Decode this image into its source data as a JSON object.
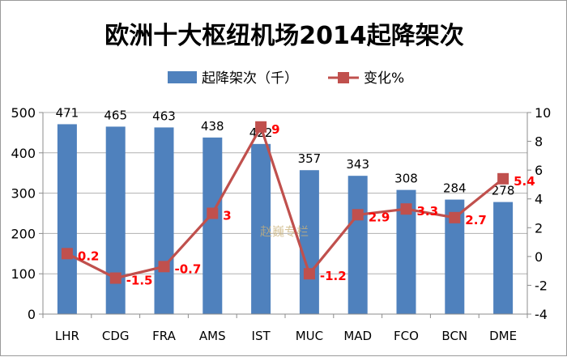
{
  "chart_data": {
    "type": "bar+line",
    "title": "欧洲十大枢纽机场2014起降架次",
    "categories": [
      "LHR",
      "CDG",
      "FRA",
      "AMS",
      "IST",
      "MUC",
      "MAD",
      "FCO",
      "BCN",
      "DME"
    ],
    "series": [
      {
        "name": "起降架次（千）",
        "kind": "bar",
        "axis": "left",
        "color": "#4f81bd",
        "values": [
          471,
          465,
          463,
          438,
          422,
          357,
          343,
          308,
          284,
          278
        ],
        "labels": [
          "471",
          "465",
          "463",
          "438",
          "422",
          "357",
          "343",
          "308",
          "284",
          "278"
        ]
      },
      {
        "name": "变化%",
        "kind": "line",
        "axis": "right",
        "color": "#c0504d",
        "label_color": "#ff0000",
        "marker": "square",
        "values": [
          0.2,
          -1.5,
          -0.7,
          3,
          9,
          -1.2,
          2.9,
          3.3,
          2.7,
          5.4
        ],
        "labels": [
          "0.2",
          "-1.5",
          "-0.7",
          "3",
          "9",
          "-1.2",
          "2.9",
          "3.3",
          "2.7",
          "5.4"
        ]
      }
    ],
    "y_left": {
      "min": 0,
      "max": 500,
      "ticks": [
        "0",
        "100",
        "200",
        "300",
        "400",
        "500"
      ],
      "tick_values": [
        0,
        100,
        200,
        300,
        400,
        500
      ]
    },
    "y_right": {
      "min": -4,
      "max": 10,
      "ticks": [
        "-4",
        "-2",
        "0",
        "2",
        "4",
        "6",
        "8",
        "10"
      ],
      "tick_values": [
        -4,
        -2,
        0,
        2,
        4,
        6,
        8,
        10
      ]
    },
    "grid": true,
    "legend_position": "top"
  },
  "watermark": "赵巍专栏"
}
